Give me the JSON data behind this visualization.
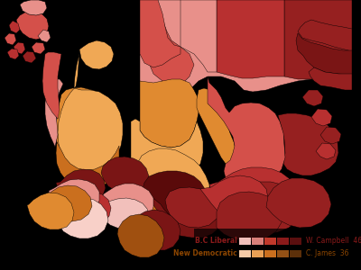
{
  "background_color": "#000000",
  "figsize": [
    4.0,
    3.0
  ],
  "dpi": 100,
  "legend": {
    "bc_liberal_label": "B.C Liberal",
    "ndp_label": "New Democratic",
    "campbell_label": "W. Campbell",
    "campbell_seats": 46,
    "james_label": "C. James",
    "james_seats": 36
  },
  "liberal_swatch": [
    "#f2c0bb",
    "#d9807a",
    "#c0392b",
    "#8b1a1a",
    "#5a0f0f"
  ],
  "ndp_swatch": [
    "#f5cba7",
    "#e8a055",
    "#ca6f1e",
    "#935116",
    "#5c300a"
  ],
  "lib_label_color": "#8b1a1a",
  "ndp_label_color": "#8b4500"
}
